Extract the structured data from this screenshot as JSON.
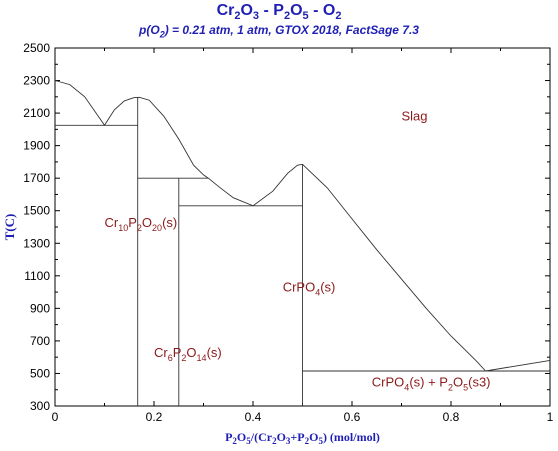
{
  "title": "Cr2O3 - P2O5 - O2",
  "subtitle": "p(O2) = 0.21 atm, 1 atm, GTOX 2018, FactSage 7.3",
  "chart_data": {
    "type": "line",
    "title": "Cr2O3 - P2O5 - O2",
    "subtitle": "p(O2) = 0.21 atm, 1 atm, GTOX 2018, FactSage 7.3",
    "xlabel": "P2O5/(Cr2O3+P2O5) (mol/mol)",
    "ylabel": "T(C)",
    "xlim": [
      0,
      1
    ],
    "ylim": [
      300,
      2500
    ],
    "xticks": [
      "0",
      "0.2",
      "0.4",
      "0.6",
      "0.8",
      "1"
    ],
    "yticks": [
      "300",
      "500",
      "700",
      "900",
      "1100",
      "1300",
      "1500",
      "1700",
      "1900",
      "2100",
      "2300",
      "2500"
    ],
    "grid": false,
    "liquidus": [
      {
        "x": [
          0.0,
          0.03,
          0.06,
          0.09,
          0.1,
          0.12,
          0.14,
          0.16,
          0.17,
          0.19,
          0.22,
          0.25,
          0.28,
          0.3,
          0.31
        ],
        "y": [
          2300,
          2275,
          2200,
          2070,
          2025,
          2120,
          2175,
          2195,
          2197,
          2180,
          2080,
          1940,
          1780,
          1720,
          1700
        ]
      },
      {
        "x": [
          0.31,
          0.33,
          0.36,
          0.4,
          0.44,
          0.47,
          0.49,
          0.5
        ],
        "y": [
          1700,
          1650,
          1580,
          1530,
          1620,
          1730,
          1780,
          1785
        ]
      },
      {
        "x": [
          0.5,
          0.55,
          0.6,
          0.65,
          0.7,
          0.75,
          0.8,
          0.85,
          0.87
        ],
        "y": [
          1785,
          1640,
          1450,
          1260,
          1080,
          900,
          730,
          580,
          515
        ]
      },
      {
        "x": [
          0.87,
          0.92,
          0.96,
          1.0
        ],
        "y": [
          515,
          540,
          560,
          580
        ]
      }
    ],
    "invariants": [
      {
        "x": [
          0.0,
          0.167
        ],
        "y": [
          2025,
          2025
        ]
      },
      {
        "x": [
          0.167,
          0.31
        ],
        "y": [
          1700,
          1700
        ]
      },
      {
        "x": [
          0.25,
          0.5
        ],
        "y": [
          1530,
          1530
        ]
      },
      {
        "x": [
          0.5,
          1.0
        ],
        "y": [
          515,
          515
        ]
      }
    ],
    "compounds": [
      {
        "x": [
          0.167,
          0.167
        ],
        "y": [
          300,
          2197
        ]
      },
      {
        "x": [
          0.25,
          0.25
        ],
        "y": [
          300,
          1700
        ]
      },
      {
        "x": [
          0.5,
          0.5
        ],
        "y": [
          300,
          1785
        ]
      }
    ],
    "labels": [
      {
        "base": "Slag",
        "subs": [],
        "x": 0.7,
        "y": 2055
      },
      {
        "base": "Cr",
        "subs": [
          "10",
          "P",
          "2",
          "O",
          "20",
          "(s)"
        ],
        "x": 0.1,
        "y": 1400
      },
      {
        "base": "CrPO",
        "subs": [
          "4",
          "(s)"
        ],
        "x": 0.46,
        "y": 1005
      },
      {
        "base": "Cr",
        "subs": [
          "6",
          "P",
          "2",
          "O",
          "14",
          "(s)"
        ],
        "x": 0.2,
        "y": 600
      },
      {
        "base": "CrPO",
        "subs": [
          "4",
          "(s) + P",
          "2",
          "O",
          "5",
          "(s3)"
        ],
        "x": 0.64,
        "y": 420
      }
    ]
  }
}
